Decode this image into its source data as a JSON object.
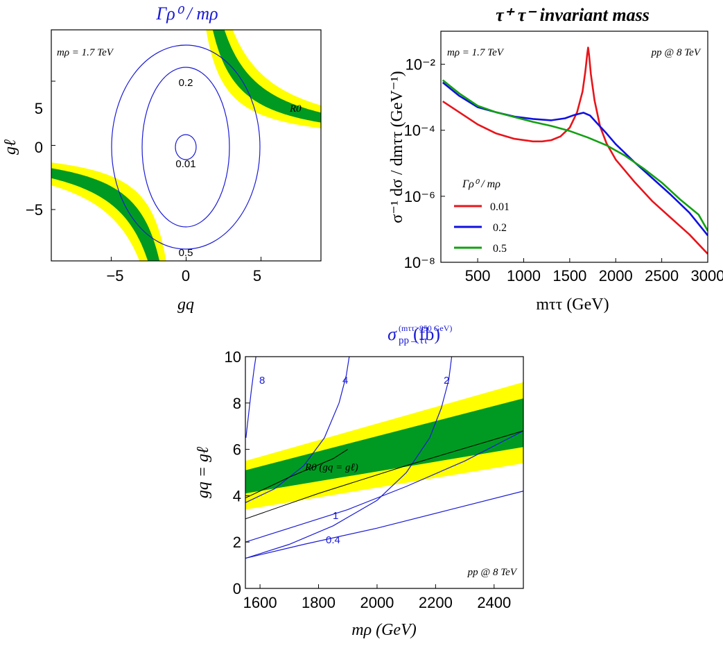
{
  "chart_data": [
    {
      "type": "contour",
      "title": "Γρ⁰ / mρ",
      "xlabel": "gq",
      "ylabel": "gℓ",
      "xlim": [
        -9,
        9
      ],
      "ylim": [
        -9,
        9
      ],
      "xticks": [
        "−5",
        "0",
        "5"
      ],
      "yticks": [
        "5",
        "0",
        "−5"
      ],
      "annotation": "mρ = 1.7 TeV",
      "band_label": "R0",
      "contours": [
        {
          "label": "0.01",
          "value": 0.01
        },
        {
          "label": "0.2",
          "value": 0.2
        },
        {
          "label": "0.5",
          "value": 0.5
        }
      ],
      "bands": [
        {
          "name": "green",
          "color": "#009a22"
        },
        {
          "name": "yellow",
          "color": "#ffff00"
        }
      ]
    },
    {
      "type": "line",
      "title": "τ⁺ τ⁻ invariant mass",
      "xlabel": "mττ (GeV)",
      "ylabel": "σ⁻¹ dσ / dmττ (GeV⁻¹)",
      "xlim": [
        100,
        3000
      ],
      "ylim": [
        1e-08,
        0.1
      ],
      "yscale": "log",
      "xticks": [
        "500",
        "1000",
        "1500",
        "2000",
        "2500",
        "3000"
      ],
      "yticks": [
        "10⁻²",
        "10⁻⁴",
        "10⁻⁶",
        "10⁻⁸"
      ],
      "annotation_left": "mρ = 1.7 TeV",
      "annotation_right": "pp @ 8 TeV",
      "legend_title": "Γρ⁰ / mρ",
      "legend_position": "bottom-left",
      "series": [
        {
          "name": "0.01",
          "color": "#e8141a",
          "points": [
            [
              120,
              0.00075
            ],
            [
              300,
              0.00035
            ],
            [
              500,
              0.00015
            ],
            [
              700,
              8e-05
            ],
            [
              900,
              5.5e-05
            ],
            [
              1100,
              4.6e-05
            ],
            [
              1200,
              4.6e-05
            ],
            [
              1300,
              5e-05
            ],
            [
              1400,
              6.5e-05
            ],
            [
              1500,
              0.00012
            ],
            [
              1580,
              0.00035
            ],
            [
              1640,
              0.0015
            ],
            [
              1670,
              0.006
            ],
            [
              1690,
              0.02
            ],
            [
              1700,
              0.032
            ],
            [
              1710,
              0.02
            ],
            [
              1730,
              0.005
            ],
            [
              1770,
              0.0008
            ],
            [
              1830,
              0.00013
            ],
            [
              1900,
              4e-05
            ],
            [
              2000,
              1.3e-05
            ],
            [
              2200,
              2.8e-06
            ],
            [
              2400,
              7e-07
            ],
            [
              2600,
              2.2e-07
            ],
            [
              2800,
              7e-08
            ],
            [
              3000,
              1.8e-08
            ]
          ]
        },
        {
          "name": "0.2",
          "color": "#1010e0",
          "points": [
            [
              120,
              0.0028
            ],
            [
              300,
              0.0011
            ],
            [
              500,
              0.0005
            ],
            [
              700,
              0.00035
            ],
            [
              900,
              0.00026
            ],
            [
              1100,
              0.00022
            ],
            [
              1300,
              0.0002
            ],
            [
              1450,
              0.00023
            ],
            [
              1550,
              0.00029
            ],
            [
              1650,
              0.00034
            ],
            [
              1720,
              0.00028
            ],
            [
              1800,
              0.00016
            ],
            [
              1900,
              8e-05
            ],
            [
              2000,
              3.8e-05
            ],
            [
              2200,
              1.1e-05
            ],
            [
              2400,
              3.5e-06
            ],
            [
              2600,
              1.1e-06
            ],
            [
              2800,
              3.2e-07
            ],
            [
              3000,
              6.5e-08
            ]
          ]
        },
        {
          "name": "0.5",
          "color": "#12a012",
          "points": [
            [
              120,
              0.0033
            ],
            [
              300,
              0.0013
            ],
            [
              500,
              0.00055
            ],
            [
              700,
              0.00035
            ],
            [
              900,
              0.00025
            ],
            [
              1100,
              0.00018
            ],
            [
              1300,
              0.000135
            ],
            [
              1500,
              9.5e-05
            ],
            [
              1700,
              6e-05
            ],
            [
              1900,
              3.5e-05
            ],
            [
              2100,
              1.7e-05
            ],
            [
              2300,
              7e-06
            ],
            [
              2500,
              2.6e-06
            ],
            [
              2700,
              8e-07
            ],
            [
              2900,
              2.8e-07
            ],
            [
              3000,
              9e-08
            ]
          ]
        }
      ]
    },
    {
      "type": "contour",
      "title": "σ pp→ττ (mττ>850 GeV) (fb)",
      "title_main": "σ",
      "title_sub": "pp→ττ",
      "title_sup": "(mττ>850 GeV)",
      "title_unit": "(fb)",
      "xlabel": "mρ (GeV)",
      "ylabel": "gq = gℓ",
      "xlim": [
        1550,
        2500
      ],
      "ylim": [
        0,
        10
      ],
      "xticks": [
        "1600",
        "1800",
        "2000",
        "2200",
        "2400"
      ],
      "yticks": [
        "0",
        "2",
        "4",
        "6",
        "8",
        "10"
      ],
      "annotation": "pp @ 8 TeV",
      "band_label": "R0 (gq = gℓ)",
      "contours": [
        {
          "label": "8",
          "value": 8
        },
        {
          "label": "4",
          "value": 4
        },
        {
          "label": "2",
          "value": 2
        },
        {
          "label": "1",
          "value": 1
        },
        {
          "label": "0.4",
          "value": 0.4
        }
      ],
      "bands": [
        {
          "name": "green",
          "color": "#009a22"
        },
        {
          "name": "yellow",
          "color": "#ffff00"
        }
      ]
    }
  ]
}
